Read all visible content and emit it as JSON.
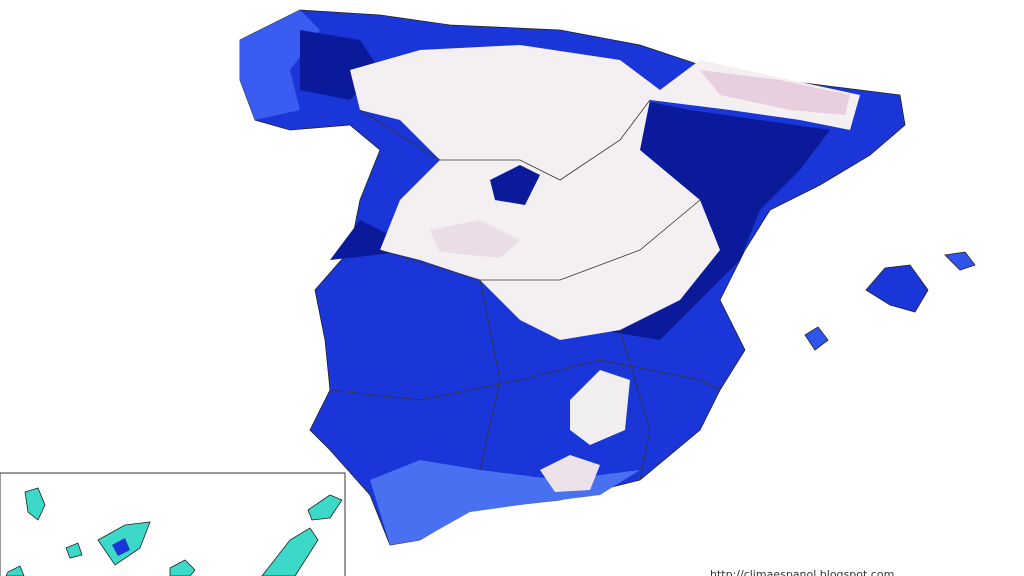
{
  "credit": "http://climaespanol.blogspot.com"
}
